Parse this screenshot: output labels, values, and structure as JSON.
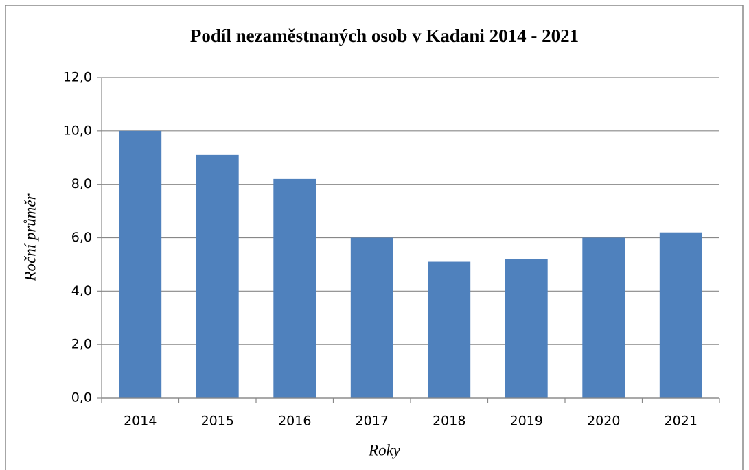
{
  "chart_data": {
    "type": "bar",
    "title": "Podíl nezaměstnaných osob v Kadani 2014 - 2021",
    "x_label": "Roky",
    "y_label": "Roční průměr",
    "categories": [
      "2014",
      "2015",
      "2016",
      "2017",
      "2018",
      "2019",
      "2020",
      "2021"
    ],
    "values": [
      10.0,
      9.1,
      8.2,
      6.0,
      5.1,
      5.2,
      6.0,
      6.2
    ],
    "color": "#4f81bd",
    "ylim": [
      0,
      12
    ],
    "yticks": [
      {
        "value": 0,
        "label": "0,0"
      },
      {
        "value": 2,
        "label": "2,0"
      },
      {
        "value": 4,
        "label": "4,0"
      },
      {
        "value": 6,
        "label": "6,0"
      },
      {
        "value": 8,
        "label": "8,0"
      },
      {
        "value": 10,
        "label": "10,0"
      },
      {
        "value": 12,
        "label": "12,0"
      }
    ],
    "grid": true
  }
}
